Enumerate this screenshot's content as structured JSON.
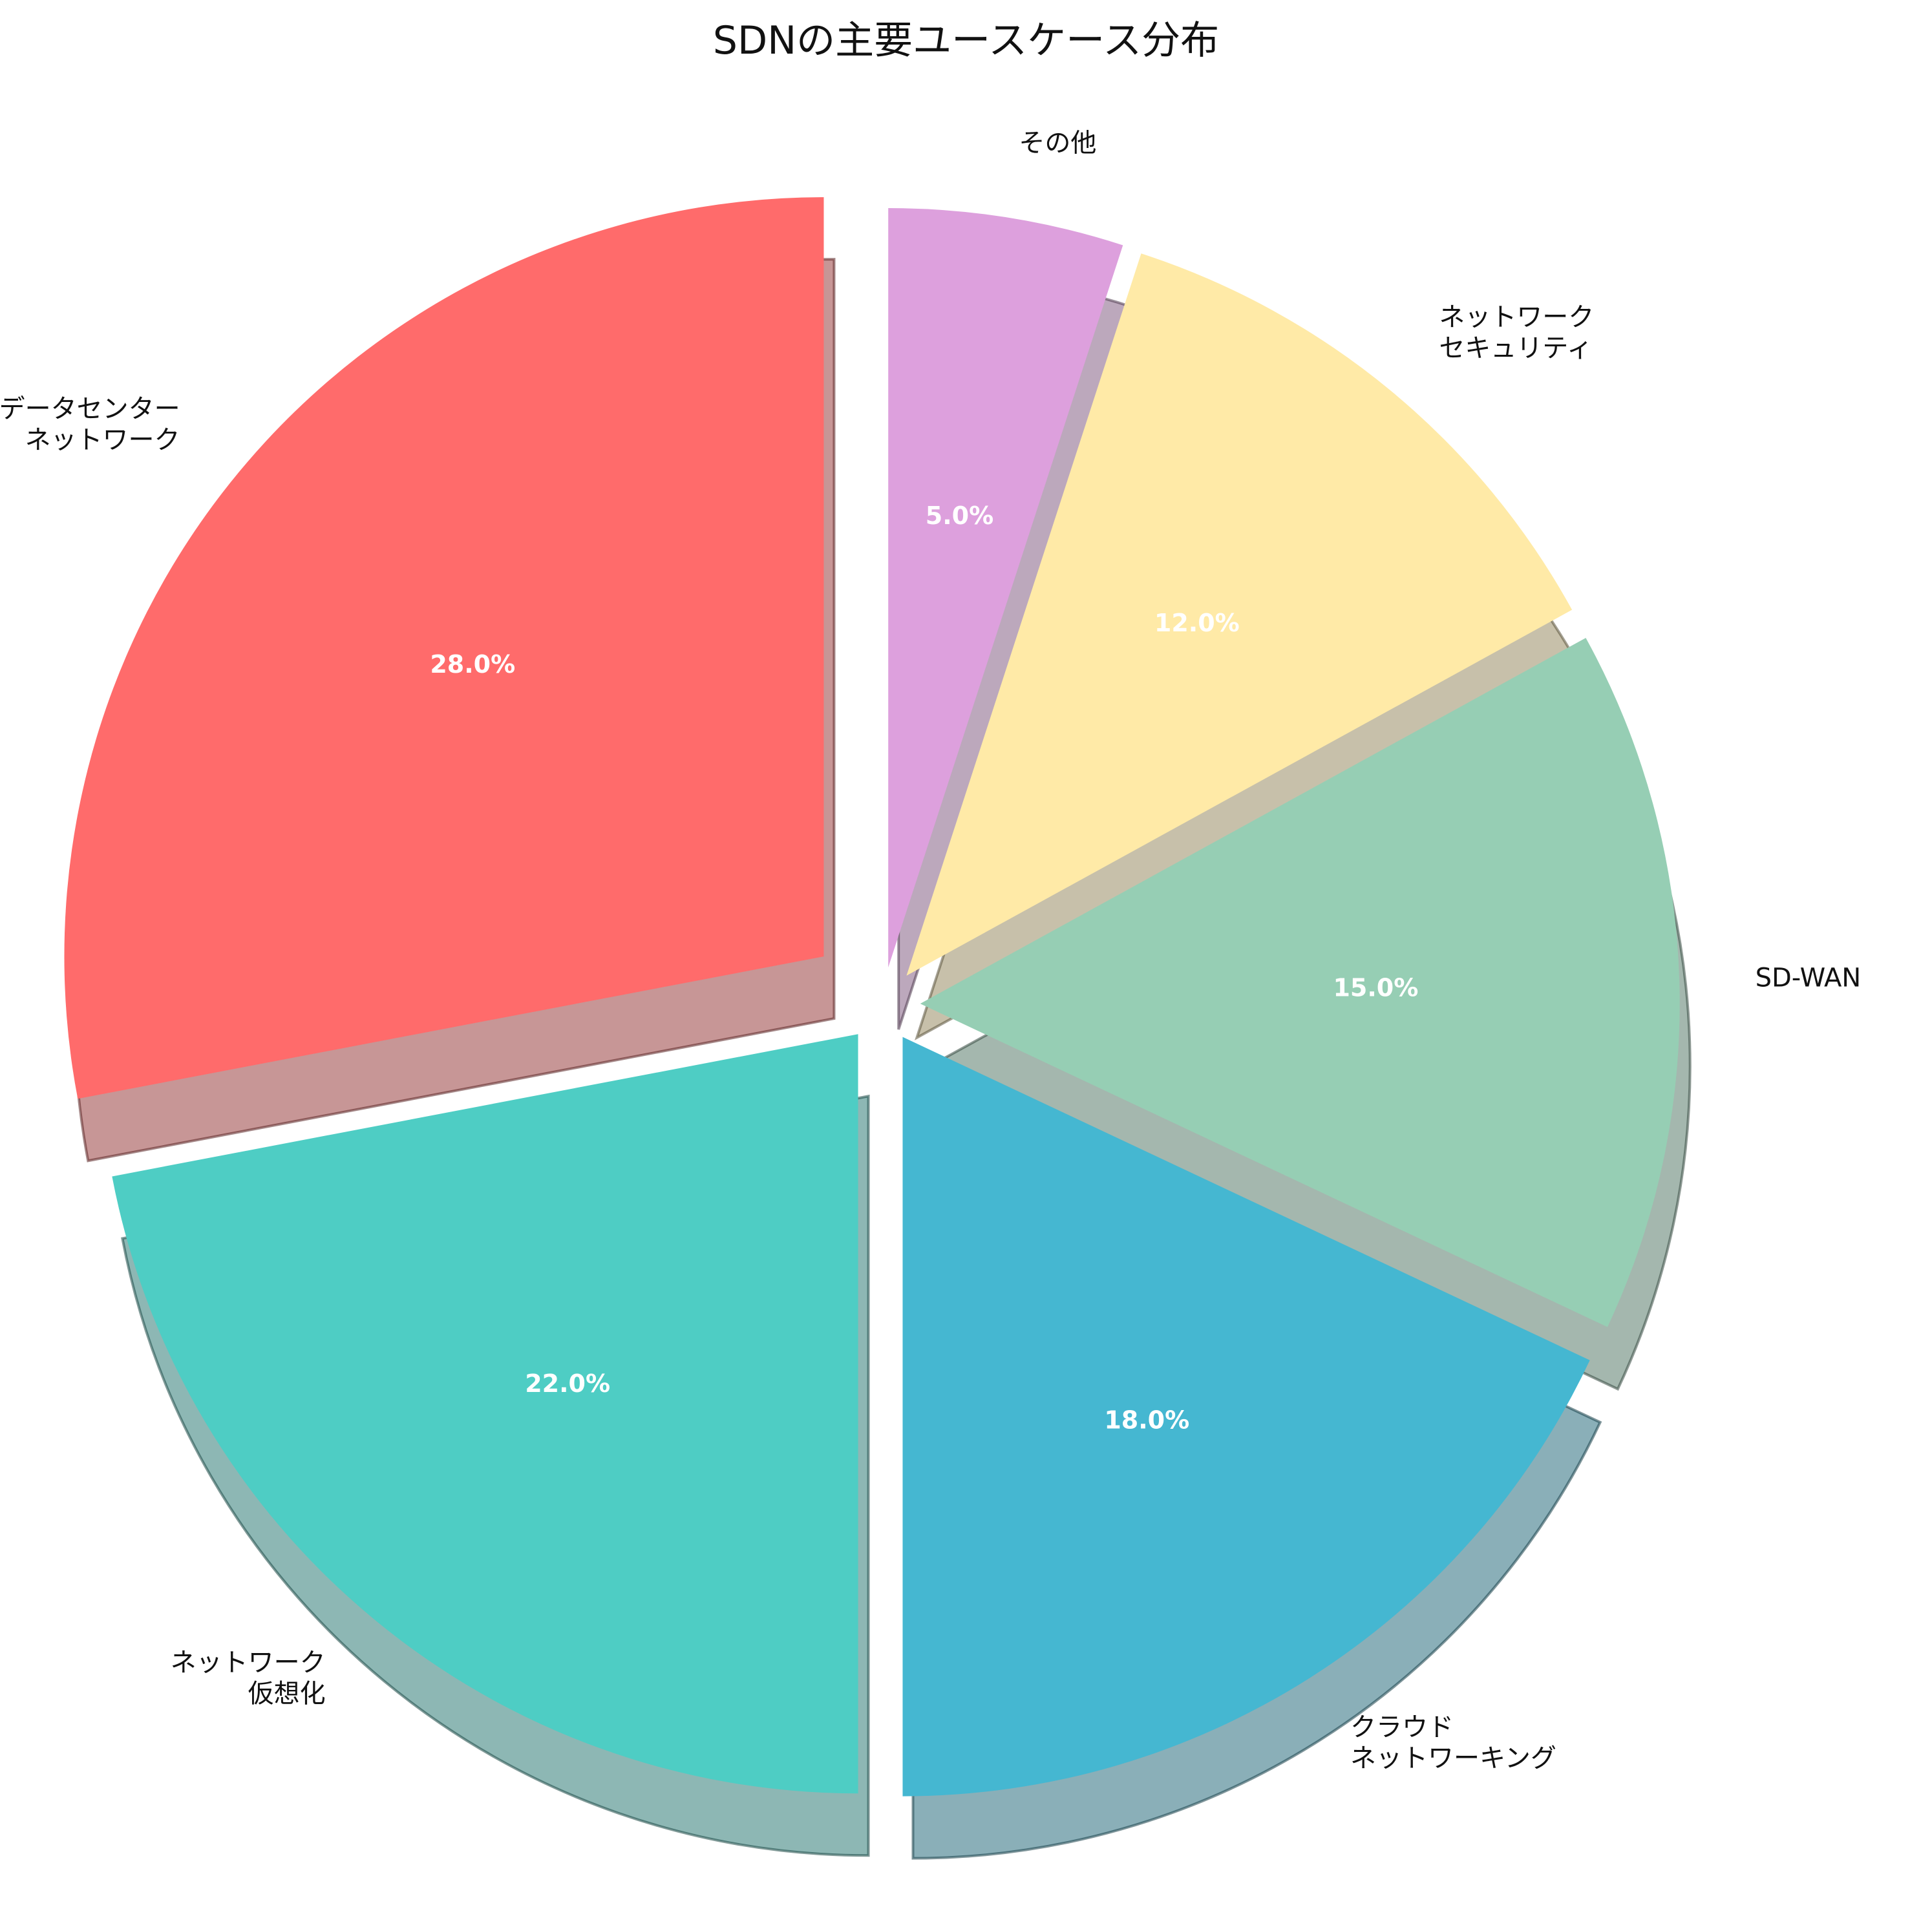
{
  "chart_data": {
    "type": "pie",
    "title": "SDNの主要ユースケース分布",
    "slices": [
      {
        "label": "データセンター\nネットワーク",
        "value": 28.0,
        "pct_label": "28.0%",
        "color": "#FF6B6B",
        "explode": 0.1
      },
      {
        "label": "ネットワーク\n仮想化",
        "value": 22.0,
        "pct_label": "22.0%",
        "color": "#4ECDC4",
        "explode": 0.05
      },
      {
        "label": "クラウド\nネットワーキング",
        "value": 18.0,
        "pct_label": "18.0%",
        "color": "#45B7D1",
        "explode": 0.05
      },
      {
        "label": "SD-WAN",
        "value": 15.0,
        "pct_label": "15.0%",
        "color": "#96CEB4",
        "explode": 0.05
      },
      {
        "label": "ネットワーク\nセキュリティ",
        "value": 12.0,
        "pct_label": "12.0%",
        "color": "#FFEAA7",
        "explode": 0.05
      },
      {
        "label": "その他",
        "value": 5.0,
        "pct_label": "5.0%",
        "color": "#DDA0DD",
        "explode": 0.05
      }
    ],
    "start_angle": 90,
    "direction": "counterclockwise",
    "shadow": true,
    "legend": "none"
  }
}
